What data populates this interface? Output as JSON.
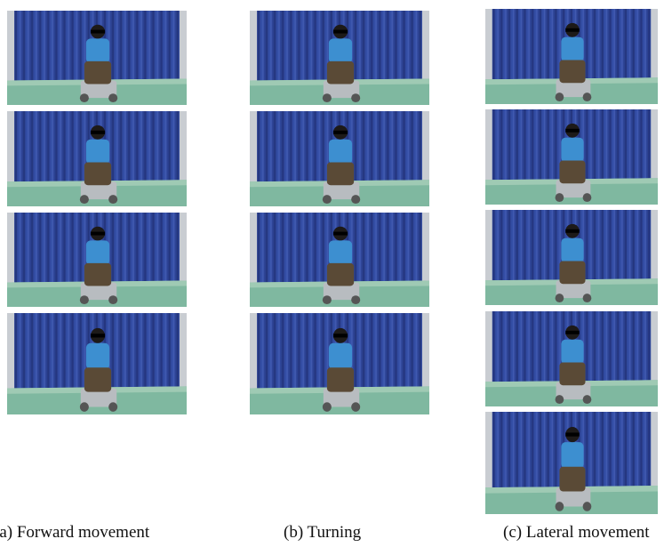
{
  "figure": {
    "panels": [
      {
        "caption": "(a) Forward movement"
      },
      {
        "caption": "(b) Turning"
      },
      {
        "caption": "(c) Lateral movement"
      }
    ]
  }
}
